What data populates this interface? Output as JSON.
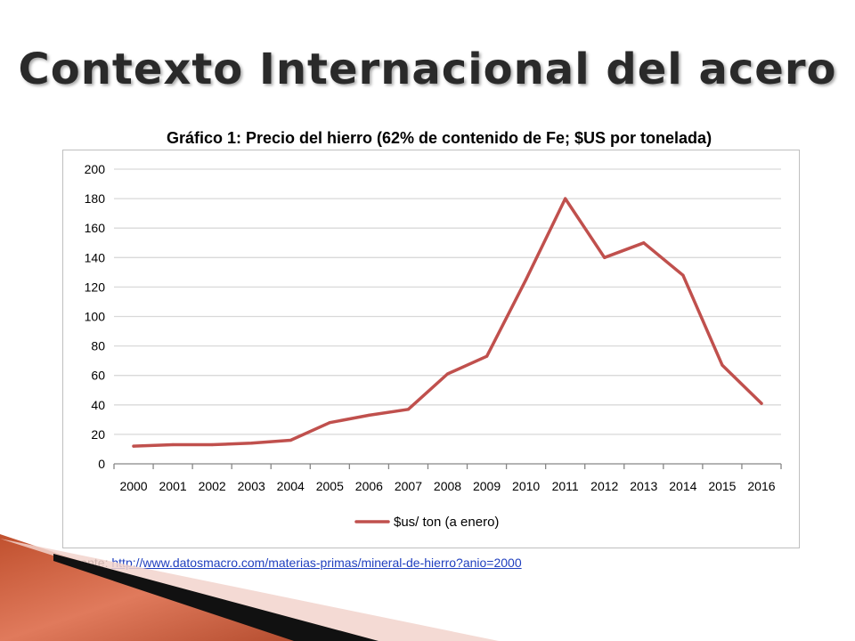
{
  "slide": {
    "title": "Contexto Internacional del acero",
    "source_label": "Fuente:",
    "source_link": "http://www.datosmacro.com/materias-primas/mineral-de-hierro?anio=2000"
  },
  "colors": {
    "series": "#c0504d",
    "grid": "#d9d9d9",
    "axis": "#868686",
    "title_text": "#2a2a2a",
    "link": "#1f3fbf"
  },
  "chart_data": {
    "type": "line",
    "title": "Gráfico 1: Precio del hierro (62% de contenido de Fe; $US por tonelada)",
    "categories": [
      "2000",
      "2001",
      "2002",
      "2003",
      "2004",
      "2005",
      "2006",
      "2007",
      "2008",
      "2009",
      "2010",
      "2011",
      "2012",
      "2013",
      "2014",
      "2015",
      "2016"
    ],
    "series": [
      {
        "name": "$us/ ton (a enero)",
        "values": [
          12,
          13,
          13,
          14,
          16,
          28,
          33,
          37,
          61,
          73,
          125,
          180,
          140,
          150,
          128,
          67,
          41
        ]
      }
    ],
    "ylim": [
      0,
      200
    ],
    "yticks": [
      0,
      20,
      40,
      60,
      80,
      100,
      120,
      140,
      160,
      180,
      200
    ],
    "grid": true,
    "legend": "bottom"
  }
}
